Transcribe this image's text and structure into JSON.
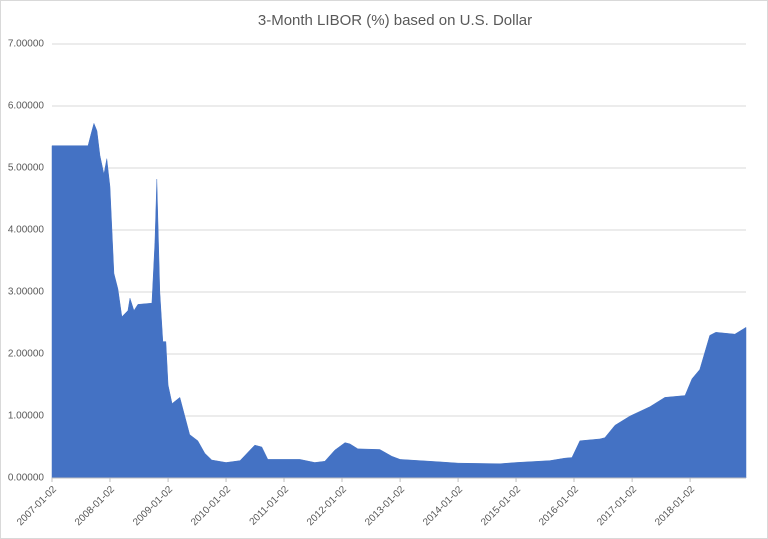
{
  "chart_data": {
    "type": "area",
    "title": "3-Month LIBOR (%) based on U.S. Dollar",
    "color": "#4472c4",
    "grid": true,
    "x": [
      "2007-01-02",
      "2007-08-17",
      "2007-09-05",
      "2007-09-23",
      "2007-10-12",
      "2007-10-31",
      "2007-11-25",
      "2007-12-13",
      "2008-01-02",
      "2008-01-27",
      "2008-02-21",
      "2008-03-17",
      "2008-04-24",
      "2008-05-07",
      "2008-06-01",
      "2008-06-26",
      "2008-09-22",
      "2008-10-11",
      "2008-10-23",
      "2008-11-11",
      "2008-11-30",
      "2008-12-19",
      "2009-01-02",
      "2009-01-27",
      "2009-03-17",
      "2009-04-17",
      "2009-05-18",
      "2009-07-08",
      "2009-08-21",
      "2009-10-04",
      "2010-01-02",
      "2010-03-31",
      "2010-06-02",
      "2010-07-02",
      "2010-08-15",
      "2010-09-22",
      "2011-01-02",
      "2011-04-12",
      "2011-07-15",
      "2011-09-16",
      "2011-11-18",
      "2012-01-21",
      "2012-02-21",
      "2012-04-11",
      "2012-08-27",
      "2012-11-11",
      "2013-01-02",
      "2013-09-10",
      "2014-01-02",
      "2014-09-23",
      "2015-01-02",
      "2015-08-03",
      "2015-11-05",
      "2015-12-20",
      "2016-02-08",
      "2016-06-13",
      "2016-07-14",
      "2016-09-16",
      "2016-12-20",
      "2017-04-24",
      "2017-07-27",
      "2017-12-01",
      "2018-01-14",
      "2018-03-04",
      "2018-05-06",
      "2018-06-13",
      "2018-10-11",
      "2018-12-20"
    ],
    "values": [
      5.36,
      5.36,
      5.55,
      5.72,
      5.6,
      5.2,
      4.9,
      5.15,
      4.7,
      3.3,
      3.05,
      2.6,
      2.7,
      2.9,
      2.7,
      2.8,
      2.82,
      3.8,
      4.82,
      3.0,
      2.2,
      2.2,
      1.5,
      1.2,
      1.3,
      1.0,
      0.7,
      0.6,
      0.4,
      0.29,
      0.25,
      0.28,
      0.45,
      0.53,
      0.5,
      0.3,
      0.3,
      0.3,
      0.25,
      0.27,
      0.45,
      0.57,
      0.55,
      0.47,
      0.46,
      0.35,
      0.3,
      0.26,
      0.24,
      0.23,
      0.25,
      0.28,
      0.32,
      0.33,
      0.6,
      0.63,
      0.65,
      0.85,
      1.0,
      1.15,
      1.3,
      1.33,
      1.6,
      1.75,
      2.3,
      2.35,
      2.32,
      2.43
    ],
    "xlim": [
      "2007-01-02",
      "2018-12-20"
    ],
    "xticks": [
      "2007-01-02",
      "2008-01-02",
      "2009-01-02",
      "2010-01-02",
      "2011-01-02",
      "2012-01-02",
      "2013-01-02",
      "2014-01-02",
      "2015-01-02",
      "2016-01-02",
      "2017-01-02",
      "2018-01-02"
    ],
    "ylim": [
      0,
      7
    ],
    "yticks": [
      {
        "value": 0,
        "label": "0.00000"
      },
      {
        "value": 1,
        "label": "1.00000"
      },
      {
        "value": 2,
        "label": "2.00000"
      },
      {
        "value": 3,
        "label": "3.00000"
      },
      {
        "value": 4,
        "label": "4.00000"
      },
      {
        "value": 5,
        "label": "5.00000"
      },
      {
        "value": 6,
        "label": "6.00000"
      },
      {
        "value": 7,
        "label": "7.00000"
      }
    ]
  }
}
